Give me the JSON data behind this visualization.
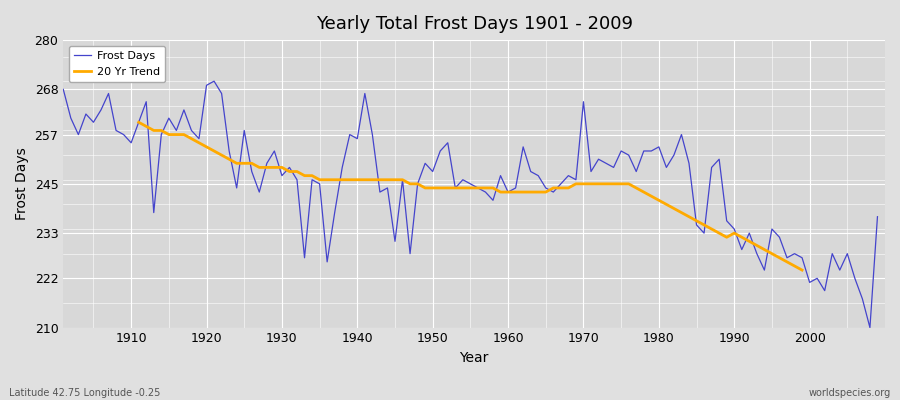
{
  "title": "Yearly Total Frost Days 1901 - 2009",
  "xlabel": "Year",
  "ylabel": "Frost Days",
  "ylim": [
    210,
    280
  ],
  "xlim": [
    1901,
    2009
  ],
  "yticks": [
    210,
    222,
    233,
    245,
    257,
    268,
    280
  ],
  "xticks": [
    1910,
    1920,
    1930,
    1940,
    1950,
    1960,
    1970,
    1980,
    1990,
    2000
  ],
  "frost_color": "#4444cc",
  "trend_color": "#ffaa00",
  "bg_color": "#e0e0e0",
  "plot_bg": "#d8d8d8",
  "subtitle_left": "Latitude 42.75 Longitude -0.25",
  "subtitle_right": "worldspecies.org",
  "legend_frost": "Frost Days",
  "legend_trend": "20 Yr Trend",
  "years": [
    1901,
    1902,
    1903,
    1904,
    1905,
    1906,
    1907,
    1908,
    1909,
    1910,
    1911,
    1912,
    1913,
    1914,
    1915,
    1916,
    1917,
    1918,
    1919,
    1920,
    1921,
    1922,
    1923,
    1924,
    1925,
    1926,
    1927,
    1928,
    1929,
    1930,
    1931,
    1932,
    1933,
    1934,
    1935,
    1936,
    1937,
    1938,
    1939,
    1940,
    1941,
    1942,
    1943,
    1944,
    1945,
    1946,
    1947,
    1948,
    1949,
    1950,
    1951,
    1952,
    1953,
    1954,
    1955,
    1956,
    1957,
    1958,
    1959,
    1960,
    1961,
    1962,
    1963,
    1964,
    1965,
    1966,
    1967,
    1968,
    1969,
    1970,
    1971,
    1972,
    1973,
    1974,
    1975,
    1976,
    1977,
    1978,
    1979,
    1980,
    1981,
    1982,
    1983,
    1984,
    1985,
    1986,
    1987,
    1988,
    1989,
    1990,
    1991,
    1992,
    1993,
    1994,
    1995,
    1996,
    1997,
    1998,
    1999,
    2000,
    2001,
    2002,
    2003,
    2004,
    2005,
    2006,
    2007,
    2008,
    2009
  ],
  "frost_days": [
    268,
    261,
    257,
    262,
    260,
    263,
    267,
    258,
    257,
    255,
    260,
    265,
    238,
    257,
    261,
    258,
    263,
    258,
    256,
    269,
    270,
    267,
    253,
    244,
    258,
    248,
    243,
    250,
    253,
    247,
    249,
    246,
    227,
    246,
    245,
    226,
    238,
    249,
    257,
    256,
    267,
    257,
    243,
    244,
    231,
    246,
    228,
    245,
    250,
    248,
    253,
    255,
    244,
    246,
    245,
    244,
    243,
    241,
    247,
    243,
    244,
    254,
    248,
    247,
    244,
    243,
    245,
    247,
    246,
    265,
    248,
    251,
    250,
    249,
    253,
    252,
    248,
    253,
    253,
    254,
    249,
    252,
    257,
    250,
    235,
    233,
    249,
    251,
    236,
    234,
    229,
    233,
    228,
    224,
    234,
    232,
    227,
    228,
    227,
    221,
    222,
    219,
    228,
    224,
    228,
    222,
    217,
    210,
    237
  ],
  "trend_years": [
    1911,
    1912,
    1913,
    1914,
    1915,
    1916,
    1917,
    1918,
    1919,
    1920,
    1921,
    1922,
    1923,
    1924,
    1925,
    1926,
    1927,
    1928,
    1929,
    1930,
    1931,
    1932,
    1933,
    1934,
    1935,
    1936,
    1937,
    1938,
    1939,
    1940,
    1941,
    1942,
    1943,
    1944,
    1945,
    1946,
    1947,
    1948,
    1949,
    1950,
    1951,
    1952,
    1953,
    1954,
    1955,
    1956,
    1957,
    1958,
    1959,
    1960,
    1961,
    1962,
    1963,
    1964,
    1965,
    1966,
    1967,
    1968,
    1969,
    1970,
    1971,
    1972,
    1973,
    1974,
    1975,
    1976,
    1977,
    1978,
    1979,
    1980,
    1981,
    1982,
    1983,
    1984,
    1985,
    1986,
    1987,
    1988,
    1989,
    1990,
    1991,
    1992,
    1993,
    1994,
    1995,
    1996,
    1997,
    1998,
    1999
  ],
  "trend_values": [
    260,
    259,
    258,
    258,
    257,
    257,
    257,
    256,
    255,
    254,
    253,
    252,
    251,
    250,
    250,
    250,
    249,
    249,
    249,
    249,
    248,
    248,
    247,
    247,
    246,
    246,
    246,
    246,
    246,
    246,
    246,
    246,
    246,
    246,
    246,
    246,
    245,
    245,
    244,
    244,
    244,
    244,
    244,
    244,
    244,
    244,
    244,
    244,
    243,
    243,
    243,
    243,
    243,
    243,
    243,
    244,
    244,
    244,
    245,
    245,
    245,
    245,
    245,
    245,
    245,
    245,
    244,
    243,
    242,
    241,
    240,
    239,
    238,
    237,
    236,
    235,
    234,
    233,
    232,
    233,
    232,
    231,
    230,
    229,
    228,
    227,
    226,
    225,
    224
  ]
}
